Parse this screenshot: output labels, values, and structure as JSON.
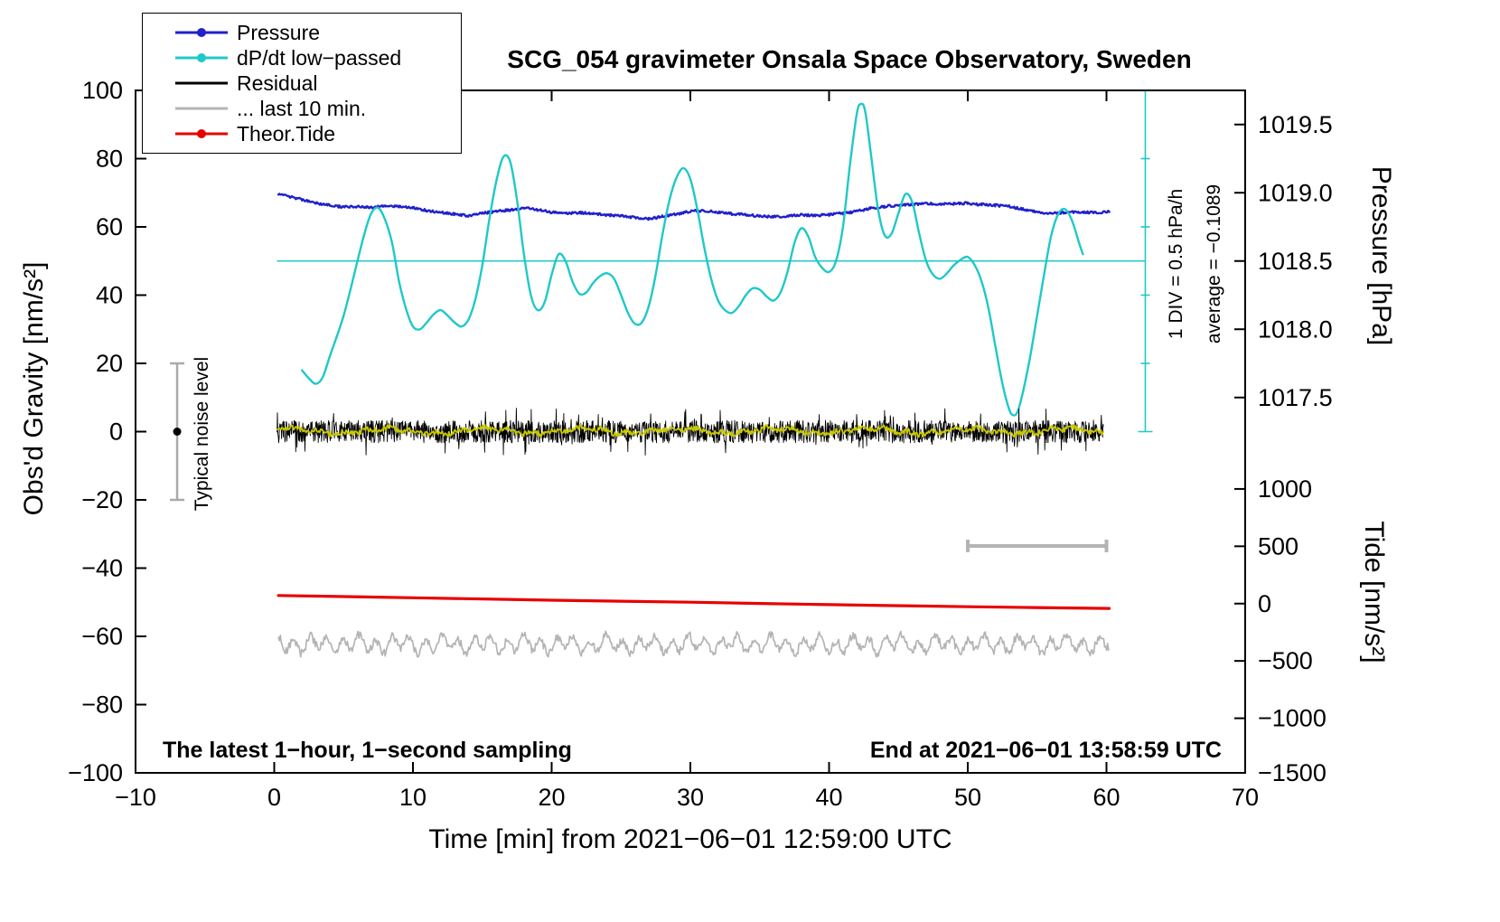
{
  "title": "SCG_054 gravimeter Onsala Space Observatory, Sweden",
  "legend": {
    "items": [
      {
        "label": "Pressure",
        "color": "#2020cc",
        "dot": true
      },
      {
        "label": "dP/dt low−passed",
        "color": "#20c8c8",
        "dot": true
      },
      {
        "label": "Residual",
        "color": "#000000",
        "dot": false
      },
      {
        "label": "... last 10 min.",
        "color": "#b4b4b4",
        "dot": false
      },
      {
        "label": "Theor.Tide",
        "color": "#e80000",
        "dot": true
      }
    ]
  },
  "footer": {
    "left": "The latest 1−hour, 1−second sampling",
    "right": "End at 2021−06−01 13:58:59 UTC"
  },
  "annotations": {
    "div_scale": "1 DIV = 0.5 hPa/h",
    "average": "average = −0.1089",
    "noise_label": "Typical noise level"
  },
  "chart_data": {
    "type": "line",
    "title": "SCG_054 gravimeter Onsala Space Observatory, Sweden",
    "xlabel": "Time [min] from 2021−06−01 12:59:00 UTC",
    "ylabel_left": "Obs'd Gravity [nm/s²]",
    "ylabel_right_top": "Pressure [hPa]",
    "ylabel_right_bottom": "Tide [nm/s²]",
    "x_range": [
      -10,
      70
    ],
    "x_ticks": [
      -10,
      0,
      10,
      20,
      30,
      40,
      50,
      60,
      70
    ],
    "y_range": [
      -100,
      100
    ],
    "y_ticks": [
      -100,
      -80,
      -60,
      -40,
      -20,
      0,
      20,
      40,
      60,
      80,
      100
    ],
    "grid": false,
    "legend_position": "top-left",
    "pressure_axis": {
      "ref_value": 1018.5,
      "ref_g": 50,
      "g_per_unit": 40,
      "ticks": [
        1019.5,
        1019.0,
        1018.5,
        1018.0,
        1017.5
      ]
    },
    "tide_axis": {
      "ref_value": 0,
      "ref_g": -50.4,
      "g_per_unit": 0.0336,
      "ticks": [
        1000,
        500,
        0,
        -500,
        -1000,
        -1500
      ]
    },
    "dpdt_axis": {
      "ref_g": 50,
      "g_per_unit": 40,
      "div_value_hpa_per_h": 0.5,
      "average_hpa_per_h": -0.1089
    },
    "series": {
      "pressure": {
        "name": "Pressure",
        "units": "hPa",
        "color": "#2020cc",
        "jitter": 0.35,
        "points": [
          [
            0.3,
            1018.988
          ],
          [
            1,
            1018.975
          ],
          [
            2,
            1018.95
          ],
          [
            3,
            1018.925
          ],
          [
            4,
            1018.908
          ],
          [
            5,
            1018.895
          ],
          [
            6,
            1018.9
          ],
          [
            7,
            1018.893
          ],
          [
            8,
            1018.905
          ],
          [
            9,
            1018.9
          ],
          [
            10,
            1018.888
          ],
          [
            11,
            1018.87
          ],
          [
            12,
            1018.855
          ],
          [
            13,
            1018.845
          ],
          [
            14,
            1018.83
          ],
          [
            15,
            1018.85
          ],
          [
            16,
            1018.863
          ],
          [
            17,
            1018.875
          ],
          [
            18,
            1018.888
          ],
          [
            19,
            1018.875
          ],
          [
            20,
            1018.858
          ],
          [
            21,
            1018.85
          ],
          [
            22,
            1018.855
          ],
          [
            23,
            1018.845
          ],
          [
            24,
            1018.838
          ],
          [
            25,
            1018.83
          ],
          [
            26,
            1018.82
          ],
          [
            27,
            1018.808
          ],
          [
            28,
            1018.825
          ],
          [
            29,
            1018.845
          ],
          [
            30,
            1018.863
          ],
          [
            31,
            1018.87
          ],
          [
            32,
            1018.858
          ],
          [
            33,
            1018.845
          ],
          [
            34,
            1018.838
          ],
          [
            35,
            1018.83
          ],
          [
            36,
            1018.825
          ],
          [
            37,
            1018.83
          ],
          [
            38,
            1018.838
          ],
          [
            39,
            1018.833
          ],
          [
            40,
            1018.84
          ],
          [
            41,
            1018.85
          ],
          [
            42,
            1018.863
          ],
          [
            43,
            1018.888
          ],
          [
            44,
            1018.9
          ],
          [
            45,
            1018.908
          ],
          [
            46,
            1018.913
          ],
          [
            47,
            1018.92
          ],
          [
            48,
            1018.918
          ],
          [
            49,
            1018.92
          ],
          [
            50,
            1018.923
          ],
          [
            51,
            1018.913
          ],
          [
            52,
            1018.908
          ],
          [
            53,
            1018.9
          ],
          [
            54,
            1018.88
          ],
          [
            55,
            1018.858
          ],
          [
            56,
            1018.848
          ],
          [
            57,
            1018.855
          ],
          [
            58,
            1018.858
          ],
          [
            59,
            1018.855
          ],
          [
            60.2,
            1018.86
          ]
        ]
      },
      "dpdt": {
        "name": "dP/dt low−passed",
        "units": "hPa/h",
        "color": "#20c8c8",
        "points": [
          [
            2,
            -0.8
          ],
          [
            2.5,
            -0.86
          ],
          [
            3,
            -0.9
          ],
          [
            3.5,
            -0.85
          ],
          [
            4,
            -0.7
          ],
          [
            5,
            -0.4
          ],
          [
            6,
            0
          ],
          [
            6.5,
            0.2
          ],
          [
            7,
            0.35
          ],
          [
            7.5,
            0.39
          ],
          [
            8,
            0.3
          ],
          [
            8.5,
            0.13
          ],
          [
            9,
            -0.15
          ],
          [
            9.5,
            -0.35
          ],
          [
            10,
            -0.48
          ],
          [
            10.5,
            -0.5
          ],
          [
            11,
            -0.45
          ],
          [
            11.5,
            -0.39
          ],
          [
            12,
            -0.36
          ],
          [
            12.5,
            -0.4
          ],
          [
            13,
            -0.45
          ],
          [
            13.5,
            -0.48
          ],
          [
            14,
            -0.43
          ],
          [
            14.5,
            -0.28
          ],
          [
            15,
            -0.03
          ],
          [
            15.5,
            0.3
          ],
          [
            16,
            0.58
          ],
          [
            16.5,
            0.76
          ],
          [
            17,
            0.73
          ],
          [
            17.5,
            0.45
          ],
          [
            18,
            0.05
          ],
          [
            18.5,
            -0.25
          ],
          [
            19,
            -0.36
          ],
          [
            19.5,
            -0.3
          ],
          [
            20,
            -0.1
          ],
          [
            20.5,
            0.05
          ],
          [
            21,
            0
          ],
          [
            21.5,
            -0.15
          ],
          [
            22,
            -0.24
          ],
          [
            22.5,
            -0.23
          ],
          [
            23,
            -0.16
          ],
          [
            23.5,
            -0.11
          ],
          [
            24,
            -0.09
          ],
          [
            24.5,
            -0.13
          ],
          [
            25,
            -0.25
          ],
          [
            25.5,
            -0.38
          ],
          [
            26,
            -0.46
          ],
          [
            26.5,
            -0.45
          ],
          [
            27,
            -0.33
          ],
          [
            27.5,
            -0.1
          ],
          [
            28,
            0.2
          ],
          [
            28.5,
            0.45
          ],
          [
            29,
            0.61
          ],
          [
            29.5,
            0.68
          ],
          [
            30,
            0.6
          ],
          [
            30.5,
            0.38
          ],
          [
            31,
            0.1
          ],
          [
            31.5,
            -0.13
          ],
          [
            32,
            -0.29
          ],
          [
            32.5,
            -0.36
          ],
          [
            33,
            -0.38
          ],
          [
            33.5,
            -0.33
          ],
          [
            34,
            -0.25
          ],
          [
            34.5,
            -0.2
          ],
          [
            35,
            -0.21
          ],
          [
            35.5,
            -0.26
          ],
          [
            36,
            -0.29
          ],
          [
            36.5,
            -0.23
          ],
          [
            37,
            -0.08
          ],
          [
            37.5,
            0.13
          ],
          [
            38,
            0.24
          ],
          [
            38.5,
            0.18
          ],
          [
            39,
            0.03
          ],
          [
            39.5,
            -0.05
          ],
          [
            40,
            -0.08
          ],
          [
            40.5,
            0
          ],
          [
            41,
            0.25
          ],
          [
            41.5,
            0.7
          ],
          [
            42,
            1.08
          ],
          [
            42.3,
            1.15
          ],
          [
            42.6,
            1.1
          ],
          [
            43,
            0.8
          ],
          [
            43.5,
            0.4
          ],
          [
            44,
            0.19
          ],
          [
            44.5,
            0.2
          ],
          [
            45,
            0.35
          ],
          [
            45.5,
            0.49
          ],
          [
            46,
            0.43
          ],
          [
            46.5,
            0.2
          ],
          [
            47,
            0
          ],
          [
            47.5,
            -0.1
          ],
          [
            48,
            -0.13
          ],
          [
            48.5,
            -0.09
          ],
          [
            49,
            -0.03
          ],
          [
            49.5,
            0.01
          ],
          [
            50,
            0.03
          ],
          [
            50.5,
            -0.03
          ],
          [
            51,
            -0.15
          ],
          [
            51.5,
            -0.35
          ],
          [
            52,
            -0.63
          ],
          [
            52.5,
            -0.9
          ],
          [
            53,
            -1.09
          ],
          [
            53.3,
            -1.13
          ],
          [
            53.6,
            -1.1
          ],
          [
            54,
            -0.95
          ],
          [
            54.5,
            -0.7
          ],
          [
            55,
            -0.4
          ],
          [
            55.5,
            -0.1
          ],
          [
            56,
            0.18
          ],
          [
            56.5,
            0.34
          ],
          [
            57,
            0.38
          ],
          [
            57.5,
            0.3
          ],
          [
            58,
            0.14
          ],
          [
            58.3,
            0.05
          ]
        ]
      },
      "residual": {
        "name": "Residual",
        "units": "nm/s²",
        "color": "#000000",
        "x0": 0.2,
        "x1": 59.8,
        "step": 0.03,
        "base": 0,
        "amp": 3.3,
        "spike_prob": 0.05,
        "spike_mult": 2.1,
        "width": 0.9
      },
      "residual_lowpass": {
        "name": "Residual low-passed",
        "units": "nm/s²",
        "color": "#c8c800",
        "x0": 0.2,
        "x1": 59.8,
        "step": 0.07,
        "base": 0.2,
        "amp": 0.8,
        "waves": [
          [
            0.7,
            0.9,
            0.5
          ],
          [
            0.4,
            3.7,
            2.0
          ]
        ],
        "width": 1.8
      },
      "last10": {
        "name": "... last 10 min.",
        "units": "nm/s²",
        "color": "#b4b4b4",
        "x0": 0.3,
        "x1": 60.2,
        "step": 0.07,
        "base": -62.3,
        "amp": 1.2,
        "waves": [
          [
            1.9,
            5.3,
            0.4
          ],
          [
            1.0,
            2.1,
            1.3
          ]
        ],
        "width": 1.7
      },
      "tide": {
        "name": "Theor.Tide",
        "units": "nm/s² (tide axis)",
        "color": "#e80000",
        "points": [
          [
            0.3,
            71
          ],
          [
            10,
            51
          ],
          [
            20,
            30
          ],
          [
            30,
            12
          ],
          [
            40,
            -9
          ],
          [
            50,
            -27
          ],
          [
            60.2,
            -42
          ]
        ]
      }
    },
    "markers": {
      "dpdt_zero_line": {
        "x0": 0.2,
        "x1": 62.8,
        "value": 0
      },
      "dpdt_scale_bar": {
        "x": 62.8,
        "g0": 0,
        "g1": 100,
        "tick_step_g": 20
      },
      "ten_min_bar": {
        "x0": 50,
        "x1": 60,
        "g": -33.5
      },
      "noise_errorbar": {
        "x": -7,
        "g0": -20,
        "g1": 20,
        "dot_g": 0
      }
    }
  }
}
